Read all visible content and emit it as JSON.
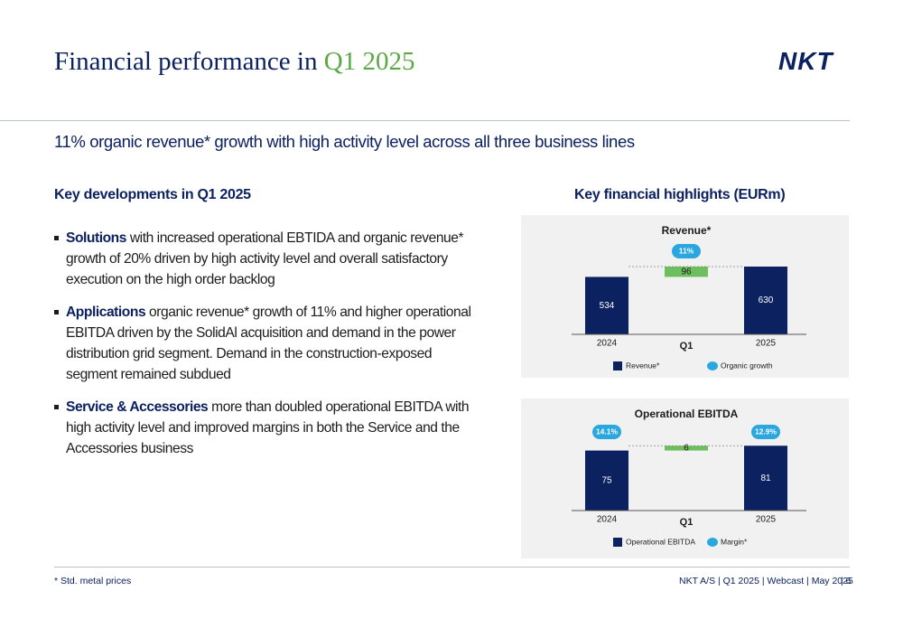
{
  "header": {
    "title": "Financial performance in ",
    "title_highlight": "Q1 2025",
    "logo": "NKT"
  },
  "subtitle": "11% organic revenue* growth with high activity level across all three business lines",
  "left": {
    "heading": "Key developments in Q1 2025",
    "bullets": [
      {
        "lead": "Solutions",
        "text": " with increased operational EBTIDA and organic revenue* growth of 20% driven by high activity level and overall satisfactory execution on the high order backlog"
      },
      {
        "lead": "Applications",
        "text": " organic revenue* growth of 11% and higher operational EBITDA driven by the SolidAl acquisition and demand in the power distribution grid segment. Demand in the construction-exposed segment remained subdued"
      },
      {
        "lead": "Service & Accessories",
        "text": " more than doubled operational EBITDA with high activity level and improved margins in both the Service and the Accessories business"
      }
    ]
  },
  "right": {
    "heading": "Key financial highlights (EURm)"
  },
  "chart_data": [
    {
      "type": "waterfall",
      "title": "Revenue*",
      "group_label": "Q1",
      "categories": [
        "2024",
        null,
        "2025"
      ],
      "ylim": [
        0,
        1050
      ],
      "series": [
        {
          "name": "Revenue*",
          "color": "#0c2160",
          "delta_color": "#6dbe5c",
          "values": [
            534,
            96,
            630
          ]
        },
        {
          "name": "Organic growth",
          "color": "#2aa7df",
          "values": [
            null,
            11,
            null
          ],
          "value_labels": [
            null,
            "11%",
            null
          ]
        }
      ]
    },
    {
      "type": "waterfall",
      "title": "Operational EBITDA",
      "group_label": "Q1",
      "categories": [
        "2024",
        null,
        "2025"
      ],
      "ylim": [
        0,
        140
      ],
      "series": [
        {
          "name": "Operational EBITDA",
          "color": "#0c2160",
          "delta_color": "#6dbe5c",
          "values": [
            75,
            6,
            81
          ]
        },
        {
          "name": "Margin*",
          "color": "#2aa7df",
          "values": [
            14.1,
            null,
            12.9
          ],
          "value_labels": [
            "14.1%",
            null,
            "12.9%"
          ]
        }
      ]
    }
  ],
  "footer": {
    "note": "* Std. metal prices",
    "source": "NKT A/S | Q1 2025 | Webcast | May 2025",
    "page": "| 6"
  }
}
